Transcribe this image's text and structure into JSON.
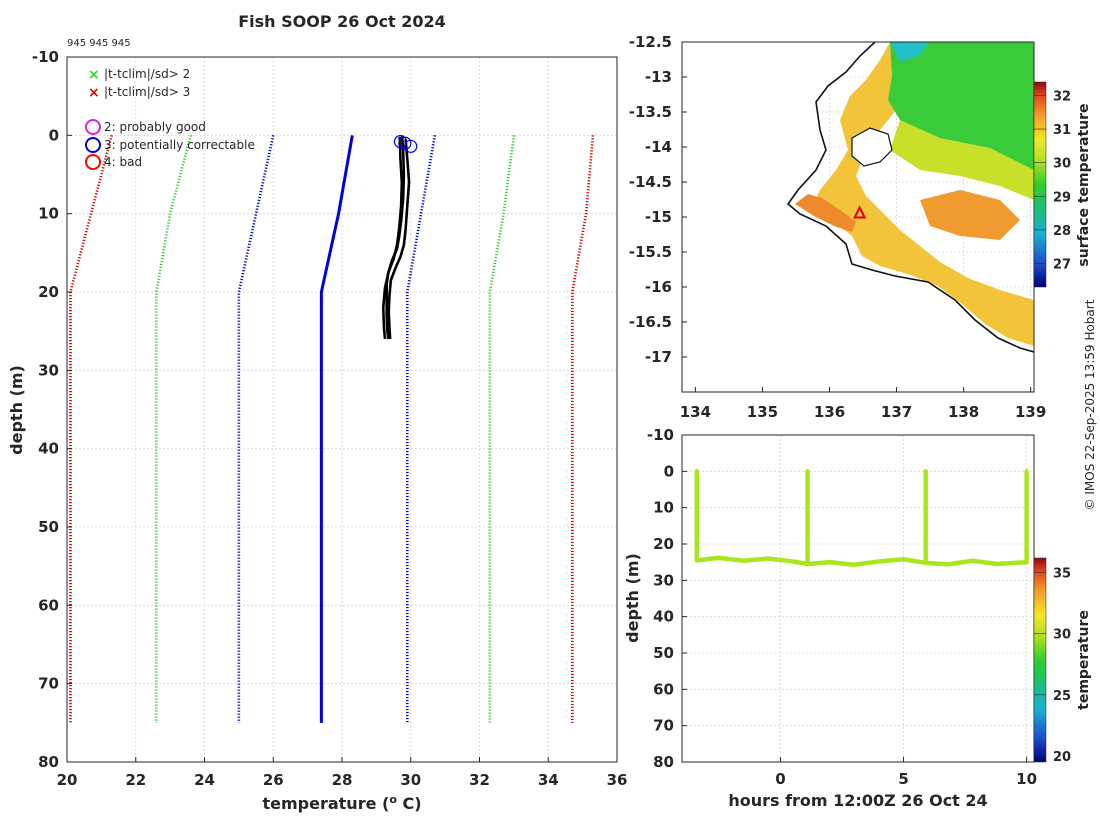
{
  "chart_data": [
    {
      "type": "line",
      "title": "Fish SOOP 26 Oct 2024",
      "subtitle": "945 945 945",
      "xlabel": "temperature (",
      "xlabel_sup": "o",
      "xlabel_end": " C)",
      "ylabel": "depth (m)",
      "xlim": [
        20,
        36
      ],
      "ylim": [
        -10,
        80
      ],
      "xticks": [
        "20",
        "22",
        "24",
        "26",
        "28",
        "30",
        "32",
        "34",
        "36"
      ],
      "yticks": [
        "-10",
        "0",
        "10",
        "20",
        "30",
        "40",
        "50",
        "60",
        "70",
        "80"
      ],
      "legend_marks": [
        {
          "label": "|t-tclim|/sd> 2",
          "color": "#22dd22"
        },
        {
          "label": "|t-tclim|/sd> 3",
          "color": "#dd0000"
        }
      ],
      "legend_flags": [
        {
          "label": "2: probably good",
          "color": "#dd22dd"
        },
        {
          "label": "3: potentially correctable",
          "color": "#0000dd"
        },
        {
          "label": "4: bad",
          "color": "#ff0000"
        }
      ],
      "climatology": {
        "depths": [
          0,
          10,
          20,
          75
        ],
        "mean": [
          28.3,
          27.9,
          27.4,
          27.4
        ],
        "series": [
          {
            "name": "-3sd",
            "color": "#cc0000",
            "values": [
              21.3,
              20.7,
              20.1,
              20.1
            ]
          },
          {
            "name": "-2sd",
            "color": "#33cc33",
            "values": [
              23.6,
              23.0,
              22.6,
              22.6
            ]
          },
          {
            "name": "-1sd",
            "color": "#0000cc",
            "values": [
              26.0,
              25.5,
              25.0,
              25.0
            ]
          },
          {
            "name": "+1sd",
            "color": "#0000cc",
            "values": [
              30.7,
              30.3,
              29.9,
              29.9
            ]
          },
          {
            "name": "+2sd",
            "color": "#33cc33",
            "values": [
              33.0,
              32.7,
              32.3,
              32.3
            ]
          },
          {
            "name": "+3sd",
            "color": "#cc0000",
            "values": [
              35.3,
              35.1,
              34.7,
              34.7
            ]
          }
        ]
      },
      "profiles": [
        {
          "temps": [
            29.75,
            29.78,
            29.8,
            29.78,
            29.72,
            29.66,
            29.6,
            29.45,
            29.35,
            29.3,
            29.3,
            29.3,
            29.32,
            29.35
          ],
          "depths": [
            0,
            2,
            5,
            8,
            11,
            13,
            14.5,
            16,
            17.5,
            19,
            21,
            23,
            25,
            26
          ]
        },
        {
          "temps": [
            29.85,
            29.9,
            29.95,
            29.9,
            29.85,
            29.8,
            29.7,
            29.55,
            29.42,
            29.38,
            29.36,
            29.38,
            29.4
          ],
          "depths": [
            0.5,
            3,
            6,
            9,
            12,
            14,
            15.5,
            17,
            18.5,
            20.5,
            22.5,
            24.5,
            26
          ]
        },
        {
          "temps": [
            29.68,
            29.7,
            29.74,
            29.72,
            29.66,
            29.6,
            29.5,
            29.35,
            29.25,
            29.2,
            29.22,
            29.25
          ],
          "depths": [
            0.2,
            3,
            6,
            9,
            12,
            14,
            15.8,
            17.5,
            19.5,
            22,
            24.5,
            26
          ]
        }
      ],
      "flag_points": [
        {
          "temp": 29.7,
          "depth": 0.8
        },
        {
          "temp": 29.83,
          "depth": 1.0
        },
        {
          "temp": 30.0,
          "depth": 1.4
        }
      ]
    },
    {
      "type": "heatmap",
      "name": "surface temperature map",
      "colorbar_label": "surface temperature",
      "colorbar_range": [
        26.3,
        32.4
      ],
      "colorbar_ticks": [
        "27",
        "28",
        "29",
        "30",
        "31",
        "32"
      ],
      "xlim": [
        133.8,
        139.05
      ],
      "ylim": [
        -17.5,
        -12.5
      ],
      "xticks": [
        "134",
        "135",
        "136",
        "137",
        "138",
        "139"
      ],
      "yticks": [
        "-12.5",
        "-13",
        "-13.5",
        "-14",
        "-14.5",
        "-15",
        "-15.5",
        "-16",
        "-16.5",
        "-17"
      ],
      "marker": {
        "lon": 136.45,
        "lat": -14.95,
        "color": "#dd0000"
      }
    },
    {
      "type": "scatter",
      "name": "depth-time section",
      "xlabel": "hours from 12:00Z 26 Oct 24",
      "ylabel": "depth (m)",
      "xlim": [
        -4.0,
        10.3
      ],
      "ylim": [
        -10,
        80
      ],
      "xticks": [
        "0",
        "5",
        "10"
      ],
      "yticks": [
        "-10",
        "0",
        "10",
        "20",
        "30",
        "40",
        "50",
        "60",
        "70",
        "80"
      ],
      "colorbar_label": "temperature",
      "colorbar_range": [
        19.5,
        36.2
      ],
      "colorbar_ticks": [
        "20",
        "25",
        "30",
        "35"
      ],
      "casts_hours": [
        -3.4,
        1.1,
        5.9,
        10.0
      ],
      "bottom_curve": {
        "hours": [
          -3.4,
          -2.5,
          -1.5,
          -0.5,
          0.5,
          1.1,
          2.0,
          3.0,
          4.0,
          5.0,
          5.9,
          6.8,
          7.8,
          8.8,
          10.0
        ],
        "depths": [
          24.5,
          23.8,
          24.6,
          24.0,
          24.8,
          25.5,
          25.0,
          25.7,
          24.8,
          24.2,
          25.2,
          25.6,
          24.6,
          25.5,
          25.0
        ]
      },
      "point_temperature": 29.6
    }
  ],
  "credit": "© IMOS 22-Sep-2025 13:59 Hobart",
  "colors": {
    "profile": "#000000",
    "point": "#a8e61e",
    "axes": "#262626"
  }
}
